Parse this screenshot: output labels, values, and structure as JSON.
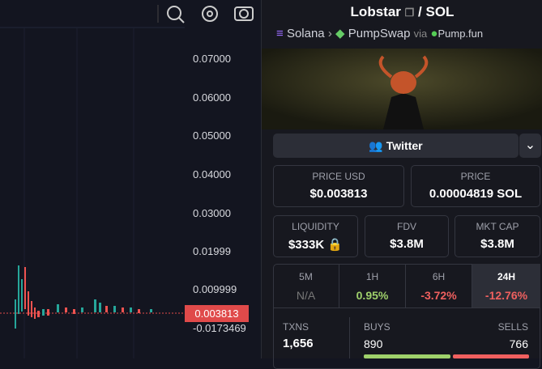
{
  "chart": {
    "price_axis": [
      "0.07000",
      "0.06000",
      "0.05000",
      "0.04000",
      "0.03000",
      "0.01999",
      "0.009999",
      "-0.0173469"
    ],
    "current_price": "0.003813"
  },
  "pair": {
    "base": "Lobstar",
    "separator": "/",
    "quote": "SOL",
    "chain": "Solana",
    "dex": "PumpSwap",
    "via": "via",
    "launchpad": "Pump.fun"
  },
  "social": {
    "button": "Twitter"
  },
  "stats": [
    {
      "label": "PRICE USD",
      "value": "$0.003813"
    },
    {
      "label": "PRICE",
      "value": "0.00004819 SOL"
    },
    {
      "label": "LIQUIDITY",
      "value": "$333K"
    },
    {
      "label": "FDV",
      "value": "$3.8M"
    },
    {
      "label": "MKT CAP",
      "value": "$3.8M"
    }
  ],
  "changes": [
    {
      "period": "5M",
      "value": "N/A"
    },
    {
      "period": "1H",
      "value": "0.95%"
    },
    {
      "period": "6H",
      "value": "-3.72%"
    },
    {
      "period": "24H",
      "value": "-12.76%"
    }
  ],
  "txns": {
    "label": "TXNS",
    "value": "1,656",
    "buys_label": "BUYS",
    "buys": "890",
    "sells_label": "SELLS",
    "sells": "766"
  }
}
